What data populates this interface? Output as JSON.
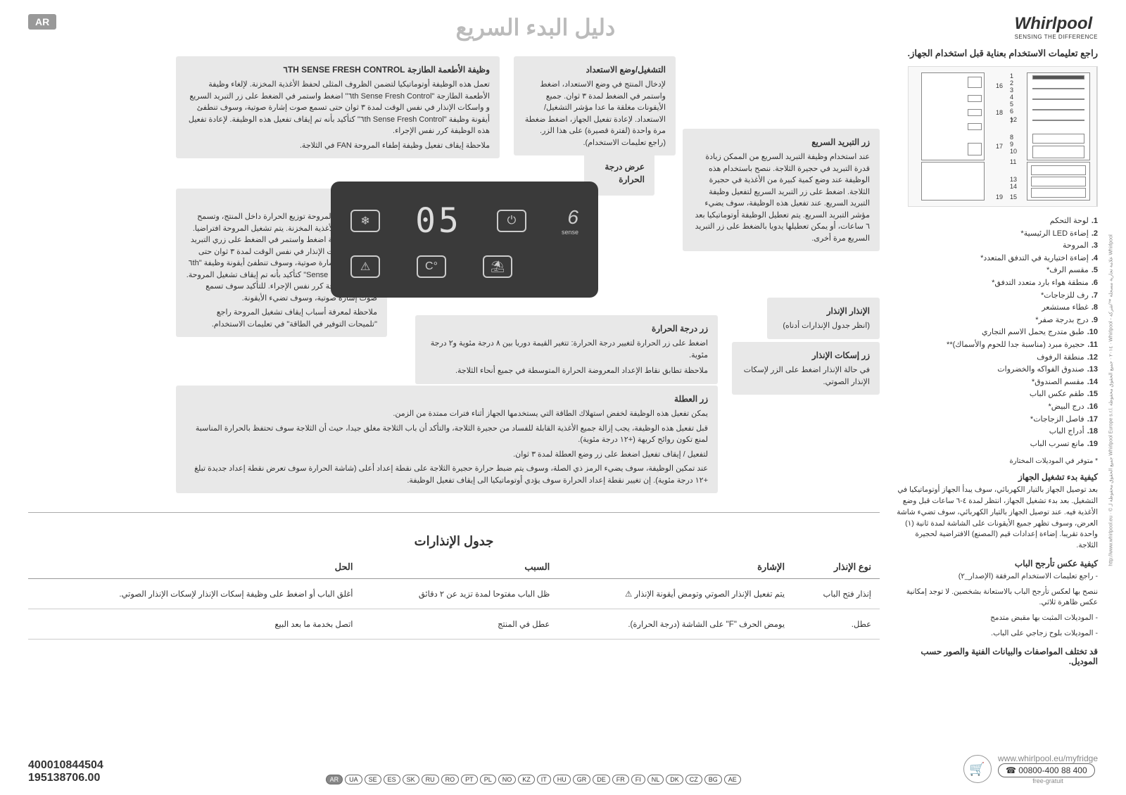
{
  "header": {
    "lang_badge": "AR",
    "title": "دليل البدء السريع",
    "brand": "Whirlpool",
    "brand_tagline": "SENSING THE DIFFERENCE"
  },
  "right_column": {
    "main_instruction": "راجع تعليمات الاستخدام بعناية قبل استخدام الجهاز.",
    "parts": [
      {
        "n": "1.",
        "t": "لوحة التحكم"
      },
      {
        "n": "2.",
        "t": "إضاءة LED الرئيسية*"
      },
      {
        "n": "3.",
        "t": "المروحة"
      },
      {
        "n": "4.",
        "t": "إضاءة اختيارية في التدفق المتعدد*"
      },
      {
        "n": "5.",
        "t": "مقسم الرف*"
      },
      {
        "n": "6.",
        "t": "منطقة هواء بارد متعدد التدفق*"
      },
      {
        "n": "7.",
        "t": "رف للزجاجات*"
      },
      {
        "n": "8.",
        "t": "غطاء مستشعر"
      },
      {
        "n": "9.",
        "t": "درج بدرجة صفر*"
      },
      {
        "n": "10.",
        "t": "طبق متدرج يحمل الاسم التجاري"
      },
      {
        "n": "11.",
        "t": "حجيرة مبرد (مناسبة جدا للحوم والأسماك)**"
      },
      {
        "n": "12.",
        "t": "منطقة الرفوف"
      },
      {
        "n": "13.",
        "t": "صندوق الفواكه والخضروات"
      },
      {
        "n": "14.",
        "t": "مقسم الصندوق*"
      },
      {
        "n": "15.",
        "t": "طقم عكس الباب"
      },
      {
        "n": "16.",
        "t": "درج البيض*"
      },
      {
        "n": "17.",
        "t": "فاصل الزجاجات*"
      },
      {
        "n": "18.",
        "t": "أدراج الباب"
      },
      {
        "n": "19.",
        "t": "مانع تسرب الباب"
      }
    ],
    "asterisk_note": "* متوفر في الموديلات المختارة",
    "startup_h": "كيفية بدء تشغيل الجهاز",
    "startup_p": "بعد توصيل الجهاز بالتيار الكهربائي، سوف يبدأ الجهاز أوتوماتيكيا في التشغيل. بعد بدء تشغيل الجهاز، انتظر لمدة ٤-٦ ساعات قبل وضع الأغذية فيه. عند توصيل الجهاز بالتيار الكهربائي، سوف تضيء شاشة العرض، وسوف تظهر جميع الأيقونات على الشاشة لمدة ثانية (١) واحدة تقريبا. إضاءة إعدادات قيم (المصنع) الافتراضية لحجيرة الثلاجة.",
    "door_h": "كيفية عكس تأرجح الباب",
    "door_p1": "- راجع تعليمات الاستخدام المرفقة (الإصدار_٢)",
    "door_p2": "ننصح بها لعكس تأرجح الباب بالاستعانة بشخصين. لا توجد إمكانية عكس ظاهرة ثلاثي.",
    "door_p3": "- الموديلات المثبت بها مقبض متدمج",
    "door_p4": "- الموديلات بلوح زجاجي على الباب.",
    "disclaimer": "قد تختلف المواصفات والبيانات الفنية والصور حسب الموديل."
  },
  "callouts": {
    "sense_h": "وظيفة الأطعمة الطازجة ٦TH SENSE FRESH CONTROL",
    "sense_p": "تعمل هذه الوظيفة أوتوماتيكيا لتضمن الظروف المثلى لحفظ الأغذية المخزنة. لإلغاء وظيفة الأطعمة الطازجة \"٦th Sense Fresh Control\" اضغط واستمر في الضغط على زر التبريد السريع و واسكات الإنذار في نفس الوقت لمدة ٣ ثوان حتى تسمع صوت إشارة صوتية، وسوف تنطفئ أيقونة وظيفة \"٦th Sense Fresh Control\" كتأكيد بأنه تم إيقاف تفعيل هذه الوظيفة. لإعادة تفعيل هذه الوظيفة كرر نفس الإجراء.",
    "sense_note": "ملاحظة إيقاف تفعيل وظيفة إطفاء المروحة FAN في الثلاجة.",
    "standby_h": "التشغيل/وضع الاستعداد",
    "standby_p": "لإدخال المنتج في وضع الاستعداد، اضغط واستمر في الضغط لمدة ٣ ثوان. جميع الأيقونات مغلقة ما عدا مؤشر التشغيل/الاستعداد. لإعادة تفعيل الجهاز، اضغط ضغطة مرة واحدة (لفترة قصيرة) على هذا الزر. (راجع تعليمات الاستخدام).",
    "fastcool_h": "زر التبريد السريع",
    "fastcool_p": "عند استخدام وظيفة التبريد السريع من الممكن زيادة قدرة التبريد في حجيرة الثلاجة. ننصح باستخدام هذه الوظيفة عند وضع كمية كبيرة من الأغذية في حجيرة الثلاجة. اضغط على زر التبريد السريع لتفعيل وظيفة التبريد السريع. عند تفعيل هذه الوظيفة، سوف يضيء مؤشر التبريد السريع. يتم تعطيل الوظيفة أوتوماتيكيا بعد ٦ ساعات، أو يمكن تعطيلها يدويا بالضغط على زر التبريد السريع مرة أخرى.",
    "temp_disp_h": "عرض درجة الحرارة",
    "fan_h": "المروحة",
    "fan_p": "تضمن وظيفة المروحة توزيع الحرارة داخل المنتج، وتسمح بحفظ أفضل للأغذية المخزنة. يتم تشغيل المروحة افتراضيا. لإيقاف المروحة اضغط واستمر في الضغط على زري التبريد السريع واسكات الإنذار في نفس الوقت لمدة ٣ ثوان حتى تسمع صوت إشارة صوتية، وسوف تنطفئ أيقونة وظيفة \"٦th Sense Fresh Control\" كتأكيد بأنه تم إيقاف تشغيل المروحة. لتشغيل المروحة كرر نفس الإجراء. للتأكيد سوف تسمع صوت إشارة صوتية، وسوف تضيء الأيقونة.",
    "fan_note": "ملاحظة لمعرفة أسباب إيقاف تشغيل المروحة راجع \"تلميحات التوفير في الطاقة\" في تعليمات الاستخدام.",
    "alarm_ind_h": "الإنذار الإنذار",
    "alarm_ind_p": "(انظر جدول الإنذارات أدناه)",
    "mute_h": "زر إسكات الإنذار",
    "mute_p": "في حالة الإنذار اضغط على الزر لإسكات الإنذار الصوتي.",
    "temp_btn_h": "زر درجة الحرارة",
    "temp_btn_p": "اضغط على زر الحرارة لتغيير درجة الحرارة: تتغير القيمة دوريا بين ٨ درجة مئوية و٢ درجة مئوية.",
    "temp_btn_note": "ملاحظة تطابق نقاط الإعداد المعروضة الحرارة المتوسطة في جميع أنحاء الثلاجة.",
    "vacation_h": "زر العطلة",
    "vacation_p1": "يمكن تفعيل هذه الوظيفة لخفض استهلاك الطاقة التي يستخدمها الجهاز أثناء فترات ممتدة من الزمن.",
    "vacation_p2": "قبل تفعيل هذه الوظيفة، يجب إزالة جميع الأغذية القابلة للفساد من حجيرة الثلاجة، والتأكد أن باب الثلاجة مغلق جيدا، حيث أن الثلاجة سوف تحتفظ بالحرارة المناسبة لمنع تكون روائح كريهة (+١٢ درجة مئوية).",
    "vacation_p3": "لتفعيل / إيقاف تفعيل اضغط على زر وضع العطلة لمدة ٣ ثوان.",
    "vacation_p4": "عند تمكين الوظيفة، سوف يضيء الرمز ذي الصلة، وسوف يتم ضبط حرارة حجيرة الثلاجة على نقطة إعداد أعلى (شاشة الحرارة سوف تعرض نقطة إعداد جديدة تبلغ +١٢ درجة مئوية). إن تغيير نقطة إعداد الحرارة سوف يؤدي أوتوماتيكيا الى إيقاف تفعيل الوظيفة."
  },
  "control_panel": {
    "display": "05",
    "sense_label": "6"
  },
  "alarm_table": {
    "title": "جدول الإنذارات",
    "headers": [
      "نوع الإنذار",
      "الإشارة",
      "السبب",
      "الحل"
    ],
    "rows": [
      [
        "إنذار فتح الباب",
        "يتم تفعيل الإنذار الصوتي وتومض أيقونة الإنذار ⚠",
        "ظل الباب مفتوحا لمدة تزيد عن ٢ دقائق",
        "أغلق الباب أو اضغط على وظيفة إسكات الإنذار لإسكات الإنذار الصوتي."
      ],
      [
        "عطل.",
        "يومض الحرف \"F\" على الشاشة (درجة الحرارة).",
        "عطل في المنتج",
        "اتصل بخدمة ما بعد البيع"
      ]
    ]
  },
  "footer": {
    "part1": "400010844504",
    "part2": "195138706.00",
    "langs": [
      "AR",
      "UA",
      "SE",
      "ES",
      "SK",
      "RU",
      "RO",
      "PT",
      "PL",
      "NO",
      "KZ",
      "IT",
      "HU",
      "GR",
      "DE",
      "FR",
      "FI",
      "NL",
      "DK",
      "CZ",
      "BG",
      "AE"
    ],
    "url": "www.whirlpool.eu/myfridge",
    "phone": "☎ 00800-400 88 400",
    "phone_sub": "free-gratuit"
  },
  "side": "http://www.whirlpool.eu · © جميع الحقوق محفوظة لـ Whirlpool Europe s.r.l. ٢٠١٤ · جميع الحقوق محفوظة · Whirlpool - علامة تجارية مسجلة ™/شركة Whirlpool"
}
